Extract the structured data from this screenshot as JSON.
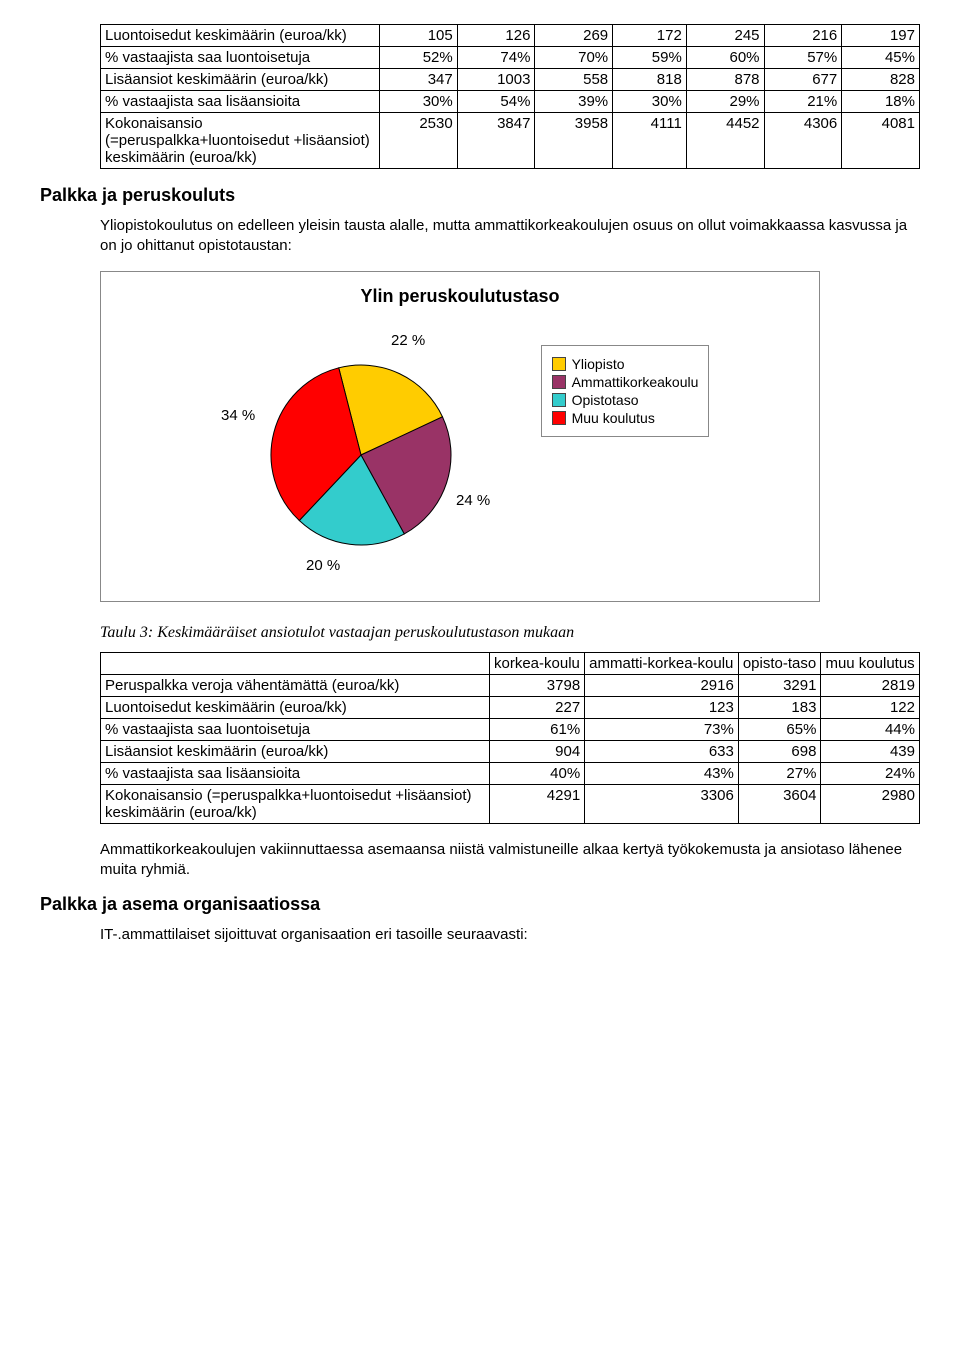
{
  "table1": {
    "rows": [
      {
        "label": "Luontoisedut keskimäärin (euroa/kk)",
        "v": [
          "105",
          "126",
          "269",
          "172",
          "245",
          "216",
          "197"
        ]
      },
      {
        "label": "% vastaajista saa luontoisetuja",
        "v": [
          "52%",
          "74%",
          "70%",
          "59%",
          "60%",
          "57%",
          "45%"
        ]
      },
      {
        "label": "Lisäansiot keskimäärin (euroa/kk)",
        "v": [
          "347",
          "1003",
          "558",
          "818",
          "878",
          "677",
          "828"
        ]
      },
      {
        "label": "% vastaajista saa lisäansioita",
        "v": [
          "30%",
          "54%",
          "39%",
          "30%",
          "29%",
          "21%",
          "18%"
        ]
      },
      {
        "label": "Kokonaisansio (=peruspalkka+luontoisedut +lisäansiot) keskimäärin (euroa/kk)",
        "v": [
          "2530",
          "3847",
          "3958",
          "4111",
          "4452",
          "4306",
          "4081"
        ]
      }
    ]
  },
  "section1_title": "Palkka ja peruskouluts",
  "para1": "Yliopistokoulutus on edelleen yleisin tausta alalle, mutta ammattikorkeakoulujen osuus on ollut voimakkaassa kasvussa ja on jo ohittanut opistotaustan:",
  "chart": {
    "title": "Ylin peruskoulutustaso",
    "slices": [
      {
        "label": "Yliopisto",
        "pct": 22,
        "color": "#ffcc00"
      },
      {
        "label": "Ammattikorkeakoulu",
        "pct": 24,
        "color": "#993366"
      },
      {
        "label": "Opistotaso",
        "pct": 20,
        "color": "#33cccc"
      },
      {
        "label": "Muu koulutus",
        "pct": 34,
        "color": "#ff0000"
      }
    ],
    "pct_labels": {
      "top": "22 %",
      "right": "24 %",
      "bottom": "20 %",
      "left": "34 %"
    },
    "outline": "#000000",
    "bg": "#ffffff"
  },
  "caption3": "Taulu 3: Keskimääräiset ansiotulot vastaajan peruskoulutustason mukaan",
  "table3": {
    "headers": [
      "",
      "korkea-koulu",
      "ammatti-korkea-koulu",
      "opisto-taso",
      "muu koulutus"
    ],
    "rows": [
      {
        "label": "Peruspalkka veroja vähentämättä (euroa/kk)",
        "v": [
          "3798",
          "2916",
          "3291",
          "2819"
        ]
      },
      {
        "label": "Luontoisedut keskimäärin (euroa/kk)",
        "v": [
          "227",
          "123",
          "183",
          "122"
        ]
      },
      {
        "label": "% vastaajista saa luontoisetuja",
        "v": [
          "61%",
          "73%",
          "65%",
          "44%"
        ]
      },
      {
        "label": "Lisäansiot keskimäärin (euroa/kk)",
        "v": [
          "904",
          "633",
          "698",
          "439"
        ]
      },
      {
        "label": "% vastaajista saa lisäansioita",
        "v": [
          "40%",
          "43%",
          "27%",
          "24%"
        ]
      },
      {
        "label": "Kokonaisansio (=peruspalkka+luontoisedut +lisäansiot) keskimäärin (euroa/kk)",
        "v": [
          "4291",
          "3306",
          "3604",
          "2980"
        ]
      }
    ]
  },
  "para2": "Ammattikorkeakoulujen vakiinnuttaessa asemaansa niistä valmistuneille alkaa kertyä työkokemusta ja ansiotaso lähenee muita ryhmiä.",
  "section2_title": "Palkka ja asema organisaatiossa",
  "para3": "IT-.ammattilaiset sijoittuvat organisaation eri tasoille seuraavasti:"
}
